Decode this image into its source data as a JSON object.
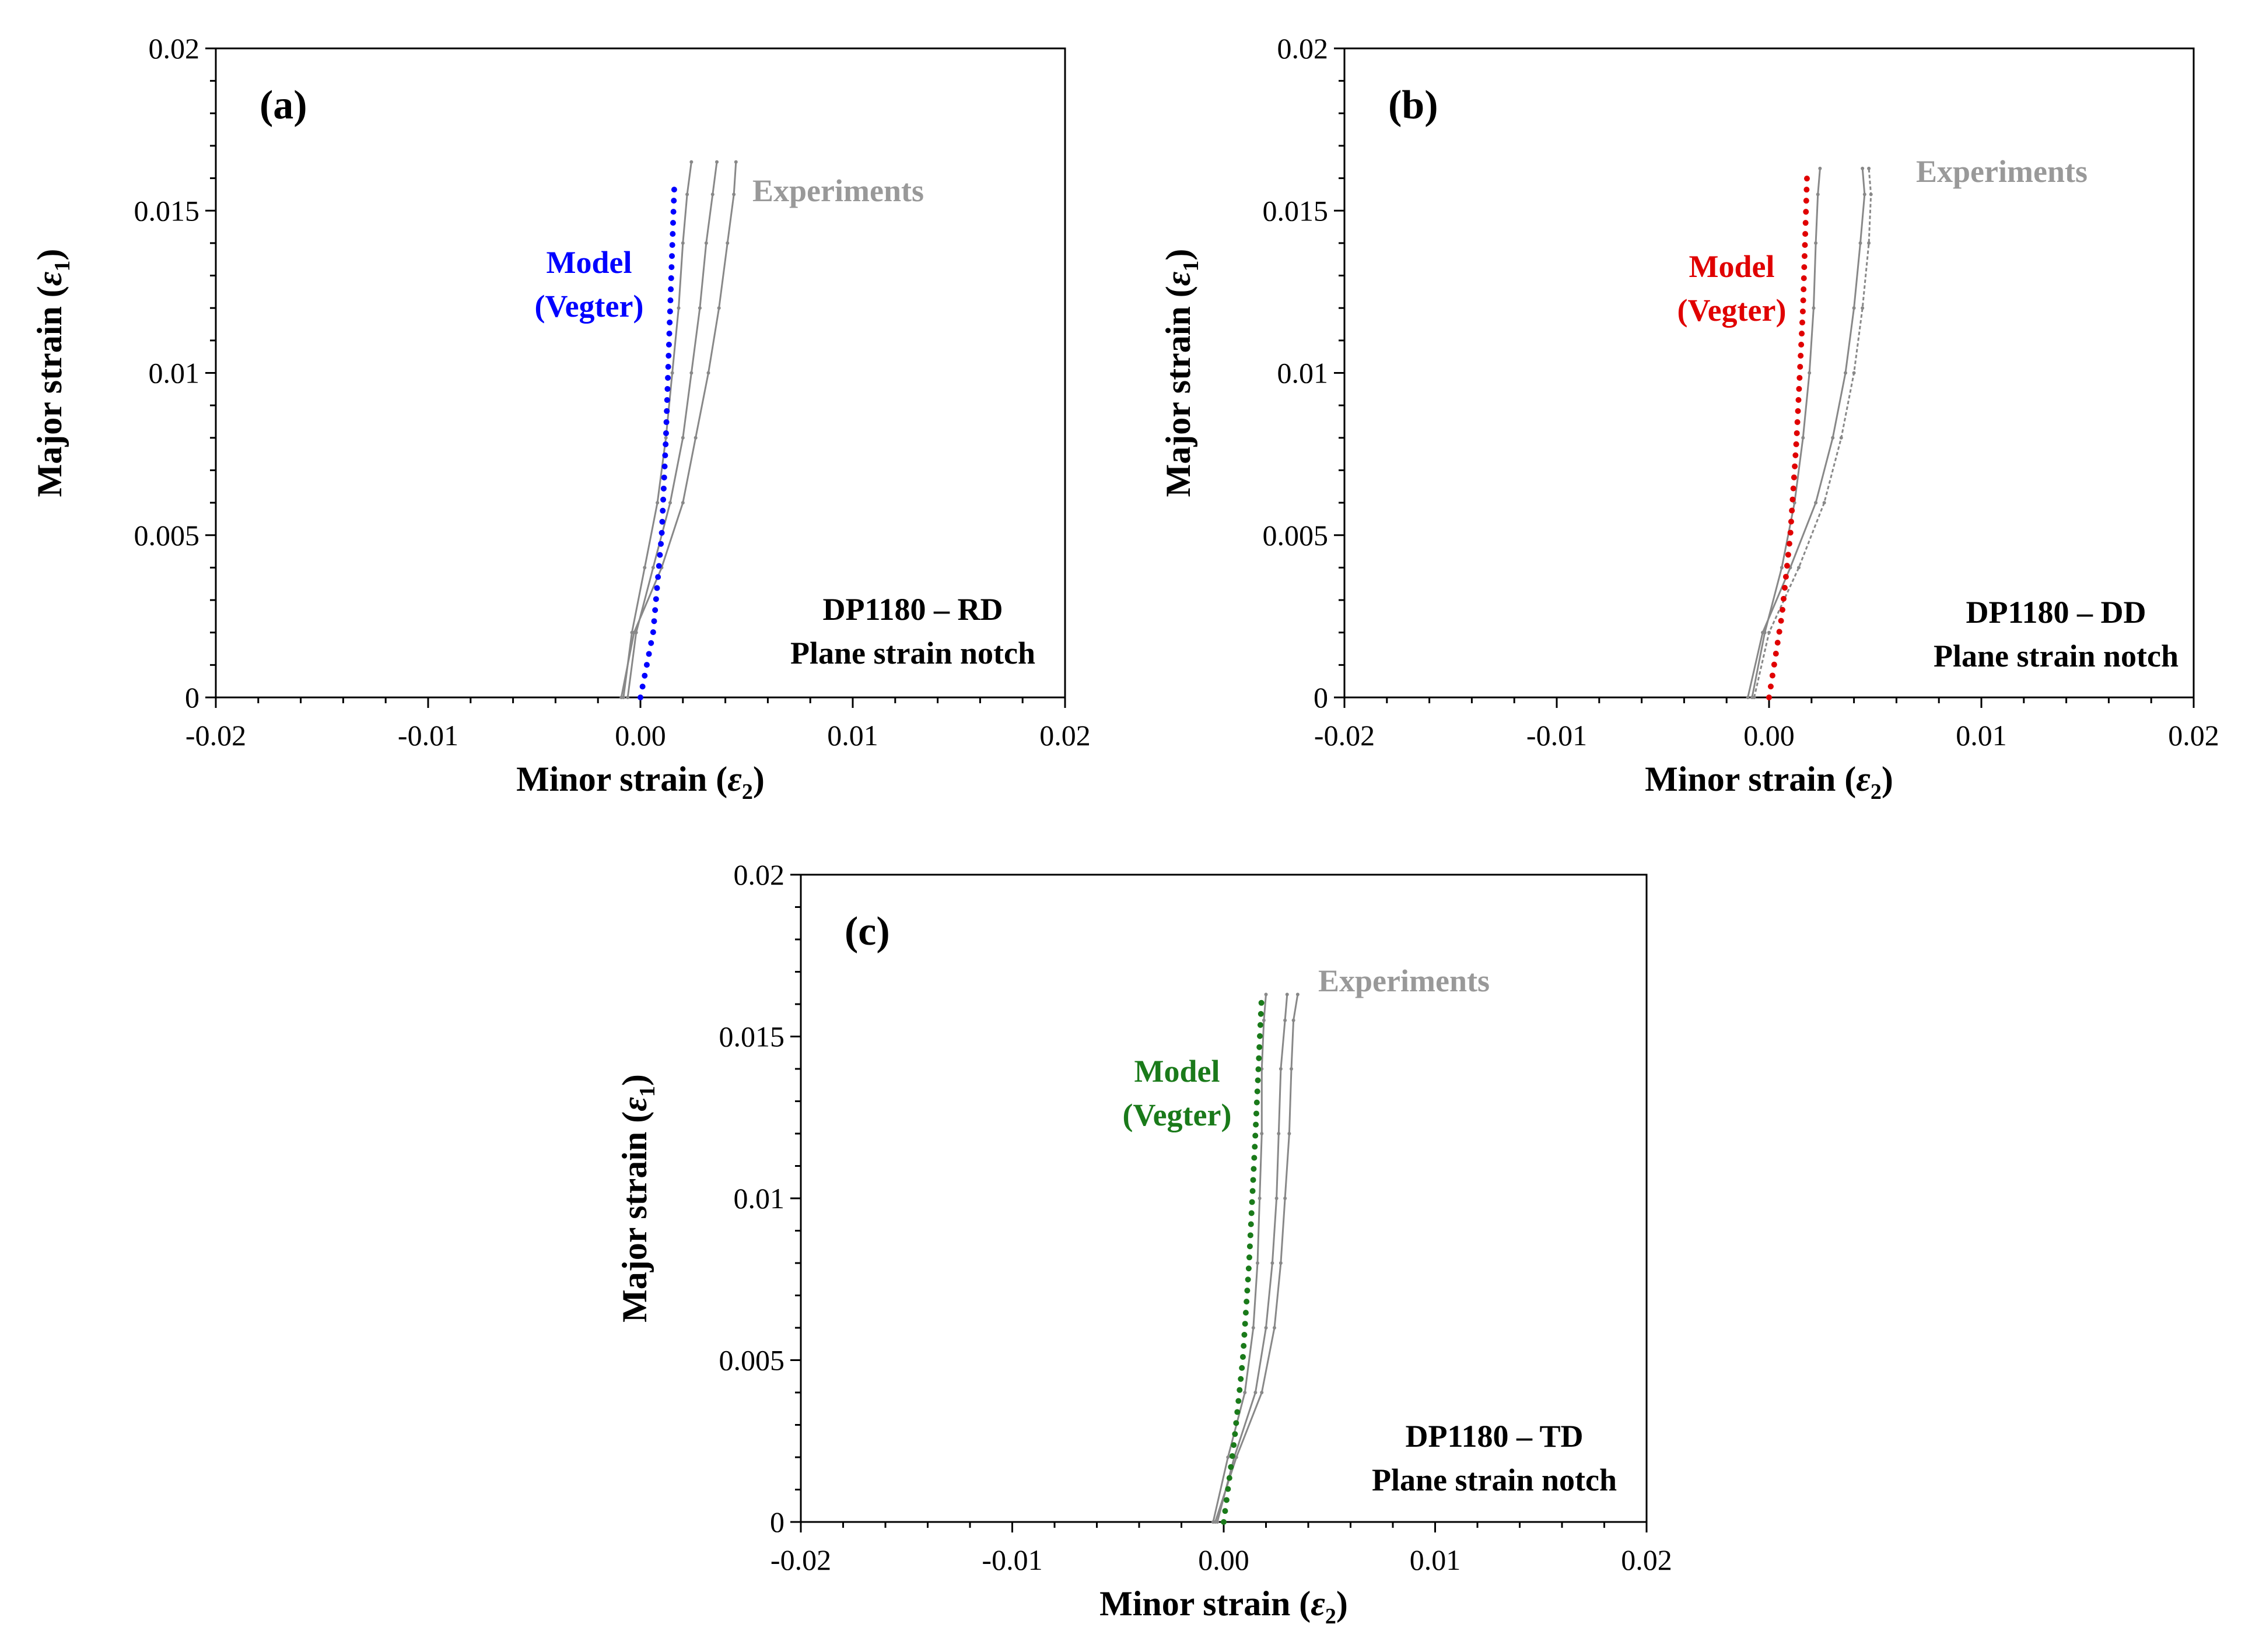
{
  "figure": {
    "description_hidden": false
  },
  "colors": {
    "experiments": "#888888",
    "experiments_label": "#999999",
    "model_a": "#0000ff",
    "model_b": "#e00000",
    "model_c": "#1a7a1a",
    "axis": "#000000"
  },
  "chart_data": [
    {
      "id": "a",
      "type": "line",
      "panel_label": "(a)",
      "xlabel_main": "Minor strain (",
      "xlabel_sym": "ε",
      "xlabel_sub": "2",
      "xlabel_end": ")",
      "ylabel_main": "Major strain (",
      "ylabel_sym": "ε",
      "ylabel_sub": "1",
      "ylabel_end": ")",
      "xlim": [
        -0.02,
        0.02
      ],
      "ylim": [
        0,
        0.02
      ],
      "xticks": [
        -0.02,
        -0.01,
        0.0,
        0.01,
        0.02
      ],
      "xtick_labels": [
        "-0.02",
        "-0.01",
        "0.00",
        "0.01",
        "0.02"
      ],
      "yticks": [
        0,
        0.005,
        0.01,
        0.015,
        0.02
      ],
      "ytick_labels": [
        "0",
        "0.005",
        "0.01",
        "0.015",
        "0.02"
      ],
      "note_line1": "DP1180 – RD",
      "note_line2": "Plane strain notch",
      "model_label_line1": "Model",
      "model_label_line2": "(Vegter)",
      "experiments_label": "Experiments",
      "model_color": "#0000ff",
      "series": [
        {
          "name": "Model (Vegter)",
          "style": "dotted",
          "x": [
            0.0,
            0.0006,
            0.001,
            0.0012,
            0.0014,
            0.0016
          ],
          "y": [
            0.0,
            0.002,
            0.005,
            0.008,
            0.012,
            0.0158
          ]
        },
        {
          "name": "Experiment 1",
          "style": "solid",
          "x": [
            -0.0008,
            -0.0004,
            0.0002,
            0.0008,
            0.0012,
            0.0015,
            0.0018,
            0.002,
            0.0022,
            0.0024
          ],
          "y": [
            0.0,
            0.002,
            0.004,
            0.006,
            0.008,
            0.01,
            0.012,
            0.014,
            0.0155,
            0.0165
          ]
        },
        {
          "name": "Experiment 2",
          "style": "solid",
          "x": [
            -0.0006,
            -0.0002,
            0.0006,
            0.0014,
            0.002,
            0.0024,
            0.0028,
            0.0031,
            0.0034,
            0.0036
          ],
          "y": [
            0.0,
            0.002,
            0.004,
            0.006,
            0.008,
            0.01,
            0.012,
            0.014,
            0.0155,
            0.0165
          ]
        },
        {
          "name": "Experiment 3",
          "style": "solid",
          "x": [
            -0.0009,
            -0.0003,
            0.001,
            0.002,
            0.0026,
            0.0032,
            0.0037,
            0.0041,
            0.0044,
            0.0045
          ],
          "y": [
            0.0,
            0.002,
            0.004,
            0.006,
            0.008,
            0.01,
            0.012,
            0.014,
            0.0155,
            0.0165
          ]
        }
      ]
    },
    {
      "id": "b",
      "type": "line",
      "panel_label": "(b)",
      "xlabel_main": "Minor strain (",
      "xlabel_sym": "ε",
      "xlabel_sub": "2",
      "xlabel_end": ")",
      "ylabel_main": "Major strain (",
      "ylabel_sym": "ε",
      "ylabel_sub": "1",
      "ylabel_end": ")",
      "xlim": [
        -0.02,
        0.02
      ],
      "ylim": [
        0,
        0.02
      ],
      "xticks": [
        -0.02,
        -0.01,
        0.0,
        0.01,
        0.02
      ],
      "xtick_labels": [
        "-0.02",
        "-0.01",
        "0.00",
        "0.01",
        "0.02"
      ],
      "yticks": [
        0,
        0.005,
        0.01,
        0.015,
        0.02
      ],
      "ytick_labels": [
        "0",
        "0.005",
        "0.01",
        "0.015",
        "0.02"
      ],
      "note_line1": "DP1180 – DD",
      "note_line2": "Plane strain notch",
      "model_label_line1": "Model",
      "model_label_line2": "(Vegter)",
      "experiments_label": "Experiments",
      "model_color": "#e00000",
      "series": [
        {
          "name": "Model (Vegter)",
          "style": "dotted",
          "x": [
            0.0,
            0.0006,
            0.001,
            0.0013,
            0.0016,
            0.0018
          ],
          "y": [
            0.0,
            0.0025,
            0.005,
            0.008,
            0.012,
            0.0163
          ]
        },
        {
          "name": "Experiment 1",
          "style": "solid",
          "x": [
            -0.0008,
            -0.0002,
            0.0006,
            0.0012,
            0.0016,
            0.0019,
            0.0021,
            0.0022,
            0.0023,
            0.0024
          ],
          "y": [
            0.0,
            0.002,
            0.004,
            0.006,
            0.008,
            0.01,
            0.012,
            0.014,
            0.0155,
            0.0163
          ]
        },
        {
          "name": "Experiment 2",
          "style": "solid",
          "x": [
            -0.001,
            -0.0003,
            0.001,
            0.0022,
            0.003,
            0.0036,
            0.004,
            0.0043,
            0.0045,
            0.0044
          ],
          "y": [
            0.0,
            0.002,
            0.004,
            0.006,
            0.008,
            0.01,
            0.012,
            0.014,
            0.0155,
            0.0163
          ]
        },
        {
          "name": "Experiment 3",
          "style": "dashed",
          "x": [
            -0.0007,
            0.0,
            0.0014,
            0.0026,
            0.0034,
            0.004,
            0.0044,
            0.0047,
            0.0048,
            0.0047
          ],
          "y": [
            0.0,
            0.002,
            0.004,
            0.006,
            0.008,
            0.01,
            0.012,
            0.014,
            0.0155,
            0.0163
          ]
        }
      ]
    },
    {
      "id": "c",
      "type": "line",
      "panel_label": "(c)",
      "xlabel_main": "Minor strain (",
      "xlabel_sym": "ε",
      "xlabel_sub": "2",
      "xlabel_end": ")",
      "ylabel_main": "Major strain (",
      "ylabel_sym": "ε",
      "ylabel_sub": "1",
      "ylabel_end": ")",
      "xlim": [
        -0.02,
        0.02
      ],
      "ylim": [
        0,
        0.02
      ],
      "xticks": [
        -0.02,
        -0.01,
        0.0,
        0.01,
        0.02
      ],
      "xtick_labels": [
        "-0.02",
        "-0.01",
        "0.00",
        "0.01",
        "0.02"
      ],
      "yticks": [
        0,
        0.005,
        0.01,
        0.015,
        0.02
      ],
      "ytick_labels": [
        "0",
        "0.005",
        "0.01",
        "0.015",
        "0.02"
      ],
      "note_line1": "DP1180 – TD",
      "note_line2": "Plane strain notch",
      "model_label_line1": "Model",
      "model_label_line2": "(Vegter)",
      "experiments_label": "Experiments",
      "model_color": "#1a7a1a",
      "series": [
        {
          "name": "Model (Vegter)",
          "style": "dotted",
          "x": [
            0.0,
            0.0005,
            0.0009,
            0.0012,
            0.0015,
            0.0018
          ],
          "y": [
            0.0,
            0.0025,
            0.005,
            0.008,
            0.012,
            0.0163
          ]
        },
        {
          "name": "Experiment 1",
          "style": "solid",
          "x": [
            -0.0005,
            0.0002,
            0.001,
            0.0014,
            0.0016,
            0.0017,
            0.0018,
            0.0018,
            0.0019,
            0.002
          ],
          "y": [
            0.0,
            0.002,
            0.004,
            0.006,
            0.008,
            0.01,
            0.012,
            0.014,
            0.0155,
            0.0163
          ]
        },
        {
          "name": "Experiment 2",
          "style": "solid",
          "x": [
            -0.0003,
            0.0005,
            0.0015,
            0.002,
            0.0023,
            0.0025,
            0.0026,
            0.0027,
            0.0029,
            0.003
          ],
          "y": [
            0.0,
            0.002,
            0.004,
            0.006,
            0.008,
            0.01,
            0.012,
            0.014,
            0.0155,
            0.0163
          ]
        },
        {
          "name": "Experiment 3",
          "style": "solid",
          "x": [
            -0.0004,
            0.0006,
            0.0018,
            0.0024,
            0.0027,
            0.0029,
            0.0031,
            0.0032,
            0.0033,
            0.0035
          ],
          "y": [
            0.0,
            0.002,
            0.004,
            0.006,
            0.008,
            0.01,
            0.012,
            0.014,
            0.0155,
            0.0163
          ]
        }
      ]
    }
  ]
}
